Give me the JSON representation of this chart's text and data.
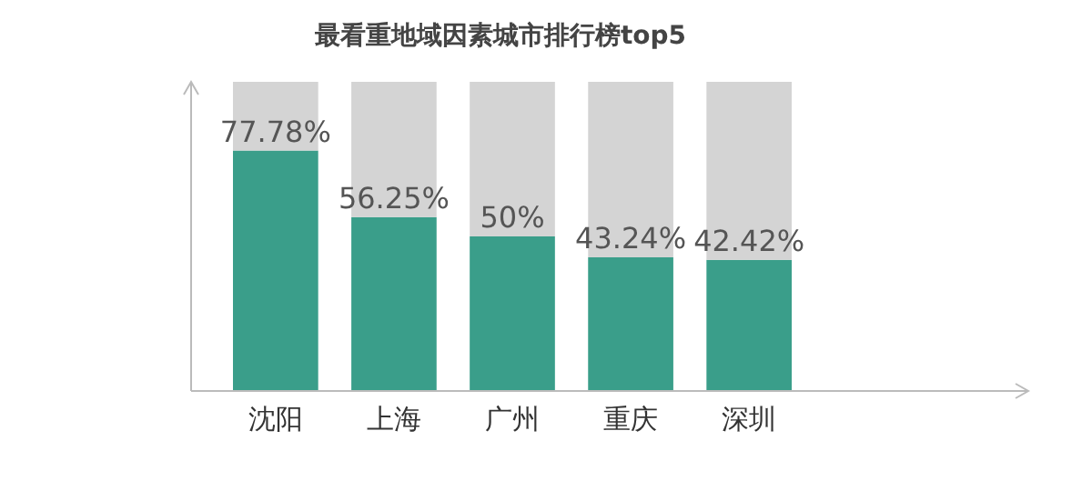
{
  "chart_data": {
    "type": "bar",
    "title": "最看重地域因素城市排行榜top5",
    "categories": [
      "沈阳",
      "上海",
      "广州",
      "重庆",
      "深圳"
    ],
    "stacked": true,
    "ylim": [
      0,
      100
    ],
    "tick_labels": "x",
    "series": [
      {
        "color": "#3a9e8a",
        "values": [
          77.78,
          56.25,
          50,
          43.24,
          42.42
        ],
        "value_labels": [
          "77.78%",
          "56.25%",
          "50%",
          "43.24%",
          "42.42%"
        ]
      },
      {
        "color": "#d4d4d4",
        "values": [
          22.22,
          43.75,
          50,
          56.76,
          57.58
        ]
      }
    ]
  }
}
